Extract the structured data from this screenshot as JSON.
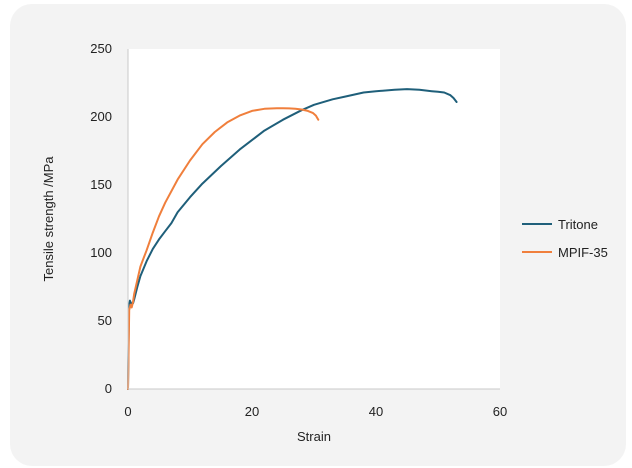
{
  "chart_data": {
    "type": "line",
    "xlabel": "Strain",
    "ylabel": "Tensile strength  /MPa",
    "xlim": [
      0,
      60
    ],
    "ylim": [
      0,
      250
    ],
    "x_ticks": [
      "0",
      "20",
      "40",
      "60"
    ],
    "y_ticks": [
      "0",
      "50",
      "100",
      "150",
      "200",
      "250"
    ],
    "grid": false,
    "legend_position": "right",
    "series": [
      {
        "name": "Tritone",
        "color": "#1f5f7a",
        "x": [
          0,
          0.15,
          0.3,
          0.5,
          0.8,
          1,
          1.5,
          2,
          3,
          4,
          5,
          6,
          7,
          8,
          10,
          12,
          15,
          18,
          20,
          22,
          25,
          28,
          30,
          33,
          35,
          38,
          40,
          43,
          45,
          47,
          49,
          50,
          51,
          52,
          52.5,
          53
        ],
        "y": [
          0,
          60,
          65,
          63,
          63,
          66,
          75,
          83,
          94,
          103,
          110,
          116,
          122,
          130,
          141,
          151,
          164,
          176,
          183,
          190,
          198,
          205,
          209,
          213,
          215,
          218,
          219,
          220,
          220.5,
          220,
          219,
          218.5,
          218,
          216,
          214,
          211
        ]
      },
      {
        "name": "MPIF-35",
        "color": "#f07f3c",
        "x": [
          0,
          0.2,
          0.4,
          0.6,
          0.8,
          1,
          1.5,
          2,
          2.5,
          3,
          4,
          5,
          6,
          8,
          10,
          12,
          14,
          16,
          18,
          20,
          22,
          24,
          25,
          26,
          27,
          28,
          29,
          29.8,
          30.3,
          30.7
        ],
        "y": [
          0,
          58,
          62,
          60,
          64,
          70,
          80,
          90,
          96,
          102,
          115,
          127,
          137,
          154,
          168,
          180,
          189,
          196,
          201,
          204.5,
          206,
          206.5,
          206.5,
          206.3,
          206,
          205.5,
          204.5,
          203,
          201,
          198
        ]
      }
    ]
  }
}
